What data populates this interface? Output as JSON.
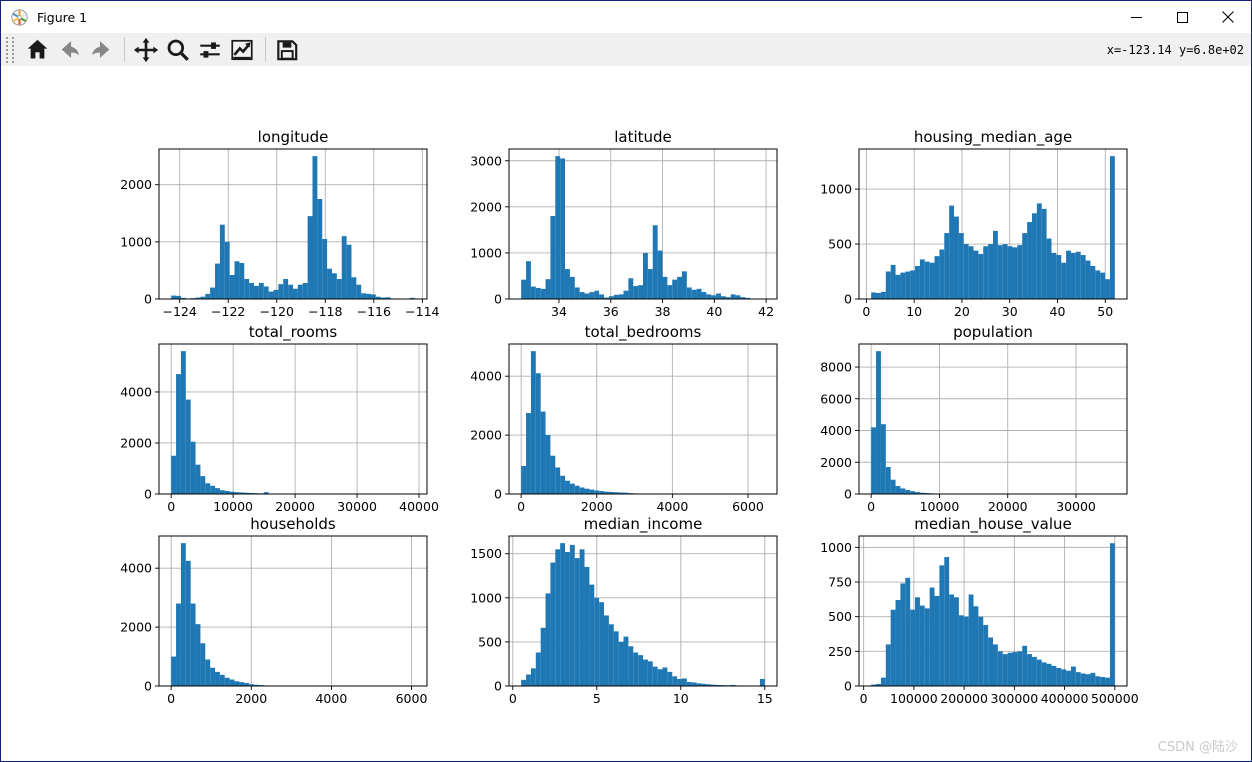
{
  "window": {
    "title": "Figure 1",
    "controls": [
      {
        "name": "minimize"
      },
      {
        "name": "maximize"
      },
      {
        "name": "close"
      }
    ]
  },
  "toolbar": {
    "buttons": [
      {
        "name": "home"
      },
      {
        "name": "back"
      },
      {
        "name": "forward"
      },
      {
        "name": "pan"
      },
      {
        "name": "zoom"
      },
      {
        "name": "configure-subplots"
      },
      {
        "name": "edit-axis"
      },
      {
        "name": "save"
      }
    ],
    "coordinates": "x=-123.14 y=6.8e+02"
  },
  "watermark": "CSDN @陆沙",
  "colors": {
    "bar": "#1f77b4",
    "grid": "#b0b0b0",
    "spine": "#000000",
    "toolbar_bg": "#f0f0f0",
    "disabled_icon": "#878787",
    "icon": "#262626",
    "watermark": "#c9c9c9"
  },
  "chart_data": [
    {
      "type": "bar",
      "title": "longitude",
      "xlim": [
        -124.852,
        -113.808
      ],
      "ylim": [
        0,
        2625
      ],
      "bin_start": -124.35,
      "bin_width": 0.2008,
      "x_ticks": [
        -124,
        -122,
        -120,
        -118,
        -116,
        -114
      ],
      "x_tick_labels": [
        "−124",
        "−122",
        "−120",
        "−118",
        "−116",
        "−114"
      ],
      "y_ticks": [
        0,
        1000,
        2000
      ],
      "y_tick_labels": [
        "0",
        "1000",
        "2000"
      ],
      "counts": [
        60,
        55,
        20,
        10,
        15,
        25,
        40,
        90,
        200,
        620,
        1300,
        1000,
        420,
        660,
        630,
        350,
        280,
        230,
        280,
        220,
        130,
        160,
        260,
        350,
        250,
        180,
        250,
        280,
        1450,
        2500,
        1750,
        1050,
        530,
        450,
        350,
        1100,
        950,
        380,
        250,
        100,
        90,
        80,
        40,
        25,
        30,
        10,
        5,
        8,
        5,
        20
      ]
    },
    {
      "type": "bar",
      "title": "latitude",
      "xlim": [
        32.0695,
        42.4205
      ],
      "ylim": [
        0,
        3255
      ],
      "bin_start": 32.54,
      "bin_width": 0.1882,
      "x_ticks": [
        34,
        36,
        38,
        40,
        42
      ],
      "x_tick_labels": [
        "34",
        "36",
        "38",
        "40",
        "42"
      ],
      "y_ticks": [
        0,
        1000,
        2000,
        3000
      ],
      "y_tick_labels": [
        "0",
        "1000",
        "2000",
        "3000"
      ],
      "counts": [
        420,
        820,
        270,
        240,
        220,
        430,
        1800,
        3100,
        3050,
        650,
        480,
        250,
        150,
        120,
        150,
        180,
        100,
        30,
        60,
        90,
        100,
        180,
        450,
        280,
        300,
        1000,
        650,
        1600,
        1050,
        480,
        300,
        420,
        480,
        600,
        250,
        200,
        220,
        150,
        100,
        80,
        120,
        60,
        40,
        100,
        80,
        40,
        25,
        10,
        5,
        5
      ]
    },
    {
      "type": "bar",
      "title": "housing_median_age",
      "xlim": [
        -1.55,
        54.55
      ],
      "ylim": [
        0,
        1365
      ],
      "bin_start": 1,
      "bin_width": 1.02,
      "x_ticks": [
        0,
        10,
        20,
        30,
        40,
        50
      ],
      "x_tick_labels": [
        "0",
        "10",
        "20",
        "30",
        "40",
        "50"
      ],
      "y_ticks": [
        0,
        500,
        1000
      ],
      "y_tick_labels": [
        "0",
        "500",
        "1000"
      ],
      "counts": [
        60,
        55,
        65,
        250,
        310,
        220,
        240,
        250,
        260,
        300,
        360,
        340,
        330,
        390,
        450,
        600,
        850,
        750,
        600,
        500,
        480,
        440,
        410,
        480,
        500,
        620,
        490,
        500,
        480,
        470,
        490,
        600,
        700,
        780,
        870,
        820,
        550,
        420,
        400,
        330,
        440,
        420,
        430,
        400,
        350,
        300,
        260,
        240,
        180,
        1300
      ]
    },
    {
      "type": "bar",
      "title": "total_rooms",
      "xlim": [
        -1963.9,
        41285.9
      ],
      "ylim": [
        0,
        5880
      ],
      "bin_start": 2,
      "bin_width": 786.36,
      "x_ticks": [
        0,
        10000,
        20000,
        30000,
        40000
      ],
      "x_tick_labels": [
        "0",
        "10000",
        "20000",
        "30000",
        "40000"
      ],
      "y_ticks": [
        0,
        2000,
        4000
      ],
      "y_tick_labels": [
        "0",
        "2000",
        "4000"
      ],
      "counts": [
        1500,
        4700,
        5600,
        3700,
        2050,
        1150,
        700,
        420,
        320,
        230,
        150,
        120,
        90,
        70,
        60,
        50,
        40,
        30,
        25,
        70,
        15,
        10,
        8,
        6,
        5,
        4,
        3,
        3,
        2,
        2,
        2,
        1,
        1,
        1,
        1,
        1,
        0,
        1,
        0,
        1,
        0,
        0,
        1,
        0,
        0,
        0,
        0,
        0,
        0,
        1
      ]
    },
    {
      "type": "bar",
      "title": "total_bedrooms",
      "xlim": [
        -321.2,
        6767.2
      ],
      "ylim": [
        0,
        5093
      ],
      "bin_start": 1,
      "bin_width": 128.88,
      "x_ticks": [
        0,
        2000,
        4000,
        6000
      ],
      "x_tick_labels": [
        "0",
        "2000",
        "4000",
        "6000"
      ],
      "y_ticks": [
        0,
        2000,
        4000
      ],
      "y_tick_labels": [
        "0",
        "2000",
        "4000"
      ],
      "counts": [
        950,
        2750,
        4850,
        4100,
        2800,
        2000,
        1300,
        900,
        620,
        450,
        350,
        280,
        220,
        180,
        150,
        120,
        100,
        80,
        70,
        60,
        50,
        45,
        30,
        20,
        15,
        12,
        10,
        8,
        6,
        5,
        4,
        3,
        3,
        2,
        2,
        1,
        1,
        1,
        1,
        0,
        1,
        0,
        0,
        1,
        0,
        0,
        0,
        0,
        0,
        1
      ]
    },
    {
      "type": "bar",
      "title": "population",
      "xlim": [
        -1780.95,
        37465.95
      ],
      "ylim": [
        0,
        9450
      ],
      "bin_start": 3,
      "bin_width": 713.58,
      "x_ticks": [
        0,
        10000,
        20000,
        30000
      ],
      "x_tick_labels": [
        "0",
        "10000",
        "20000",
        "30000"
      ],
      "y_ticks": [
        0,
        2000,
        4000,
        6000,
        8000
      ],
      "y_tick_labels": [
        "0",
        "2000",
        "4000",
        "6000",
        "8000"
      ],
      "counts": [
        4200,
        9000,
        4400,
        1700,
        900,
        500,
        350,
        250,
        180,
        120,
        80,
        60,
        40,
        30,
        20,
        15,
        10,
        8,
        6,
        5,
        4,
        3,
        2,
        2,
        1,
        1,
        1,
        1,
        0,
        1,
        0,
        0,
        1,
        0,
        0,
        0,
        0,
        0,
        0,
        0,
        0,
        0,
        0,
        0,
        0,
        0,
        0,
        0,
        0,
        1
      ]
    },
    {
      "type": "bar",
      "title": "households",
      "xlim": [
        -303.05,
        6386.05
      ],
      "ylim": [
        0,
        5093
      ],
      "bin_start": 1,
      "bin_width": 121.62,
      "x_ticks": [
        0,
        2000,
        4000,
        6000
      ],
      "x_tick_labels": [
        "0",
        "2000",
        "4000",
        "6000"
      ],
      "y_ticks": [
        0,
        2000,
        4000
      ],
      "y_tick_labels": [
        "0",
        "2000",
        "4000"
      ],
      "counts": [
        1000,
        2800,
        4850,
        4250,
        2800,
        2100,
        1450,
        900,
        620,
        480,
        380,
        280,
        220,
        160,
        130,
        100,
        60,
        40,
        30,
        20,
        15,
        12,
        10,
        8,
        6,
        5,
        4,
        3,
        2,
        2,
        1,
        1,
        1,
        1,
        0,
        1,
        0,
        0,
        0,
        1,
        0,
        0,
        0,
        0,
        0,
        0,
        0,
        0,
        0,
        1
      ]
    },
    {
      "type": "bar",
      "title": "median_income",
      "xlim": [
        -0.225,
        15.725
      ],
      "ylim": [
        0,
        1701
      ],
      "bin_start": 0.4999,
      "bin_width": 0.29,
      "x_ticks": [
        0,
        5,
        10,
        15
      ],
      "x_tick_labels": [
        "0",
        "5",
        "10",
        "15"
      ],
      "y_ticks": [
        0,
        500,
        1000,
        1500
      ],
      "y_tick_labels": [
        "0",
        "500",
        "1000",
        "1500"
      ],
      "counts": [
        70,
        130,
        200,
        380,
        660,
        1050,
        1400,
        1550,
        1620,
        1520,
        1600,
        1450,
        1550,
        1350,
        1150,
        1000,
        950,
        800,
        700,
        620,
        500,
        560,
        450,
        380,
        350,
        300,
        280,
        220,
        190,
        210,
        160,
        110,
        80,
        85,
        45,
        40,
        30,
        25,
        20,
        15,
        12,
        10,
        8,
        12,
        6,
        4,
        3,
        2,
        2,
        80
      ]
    },
    {
      "type": "bar",
      "title": "median_house_value",
      "xlim": [
        -9251.1,
        524251.1
      ],
      "ylim": [
        0,
        1082
      ],
      "bin_start": 14999,
      "bin_width": 9700.04,
      "x_ticks": [
        0,
        100000,
        200000,
        300000,
        400000,
        500000
      ],
      "x_tick_labels": [
        "0",
        "100000",
        "200000",
        "300000",
        "400000",
        "500000"
      ],
      "y_ticks": [
        0,
        250,
        500,
        750,
        1000
      ],
      "y_tick_labels": [
        "0",
        "250",
        "500",
        "750",
        "1000"
      ],
      "counts": [
        10,
        15,
        60,
        300,
        550,
        620,
        740,
        780,
        550,
        640,
        580,
        560,
        710,
        650,
        870,
        930,
        660,
        640,
        510,
        500,
        660,
        575,
        500,
        440,
        350,
        300,
        250,
        230,
        240,
        245,
        250,
        290,
        230,
        210,
        190,
        170,
        160,
        145,
        130,
        120,
        110,
        140,
        100,
        90,
        85,
        95,
        70,
        65,
        60,
        1030
      ]
    }
  ]
}
